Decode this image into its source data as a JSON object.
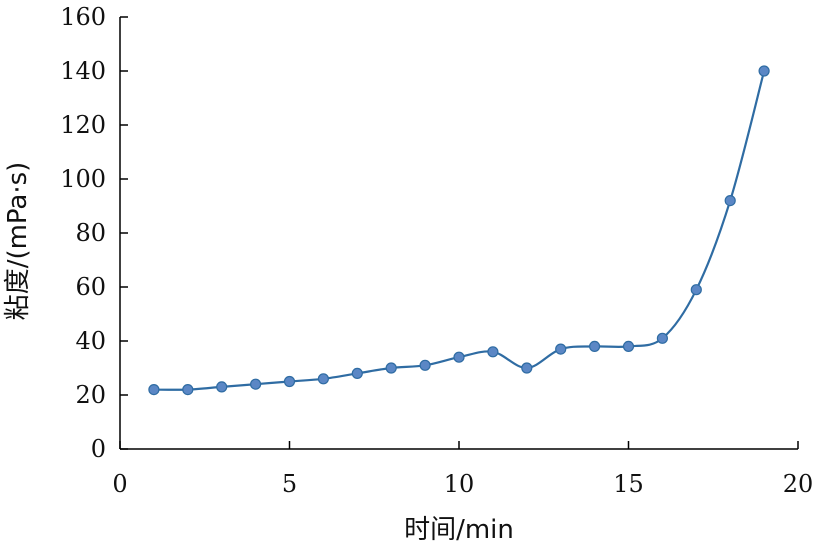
{
  "chart_data": {
    "type": "line",
    "xlabel": "时间/min",
    "ylabel": "粘度/(mPa·s)",
    "xlim": [
      0,
      20
    ],
    "ylim": [
      0,
      160
    ],
    "xticks": [
      0,
      5,
      10,
      15,
      20
    ],
    "yticks": [
      0,
      20,
      40,
      60,
      80,
      100,
      120,
      140,
      160
    ],
    "grid": false,
    "legend": "none",
    "series": [
      {
        "color": "#2f6ca3",
        "marker_color": "#5b87c5",
        "marker": "circle",
        "x": [
          1,
          2,
          3,
          4,
          5,
          6,
          7,
          8,
          9,
          10,
          11,
          12,
          13,
          14,
          15,
          16,
          17,
          18,
          19
        ],
        "y": [
          22,
          22,
          23,
          24,
          25,
          26,
          28,
          30,
          31,
          34,
          36,
          30,
          37,
          38,
          38,
          41,
          59,
          92,
          140
        ]
      }
    ]
  }
}
